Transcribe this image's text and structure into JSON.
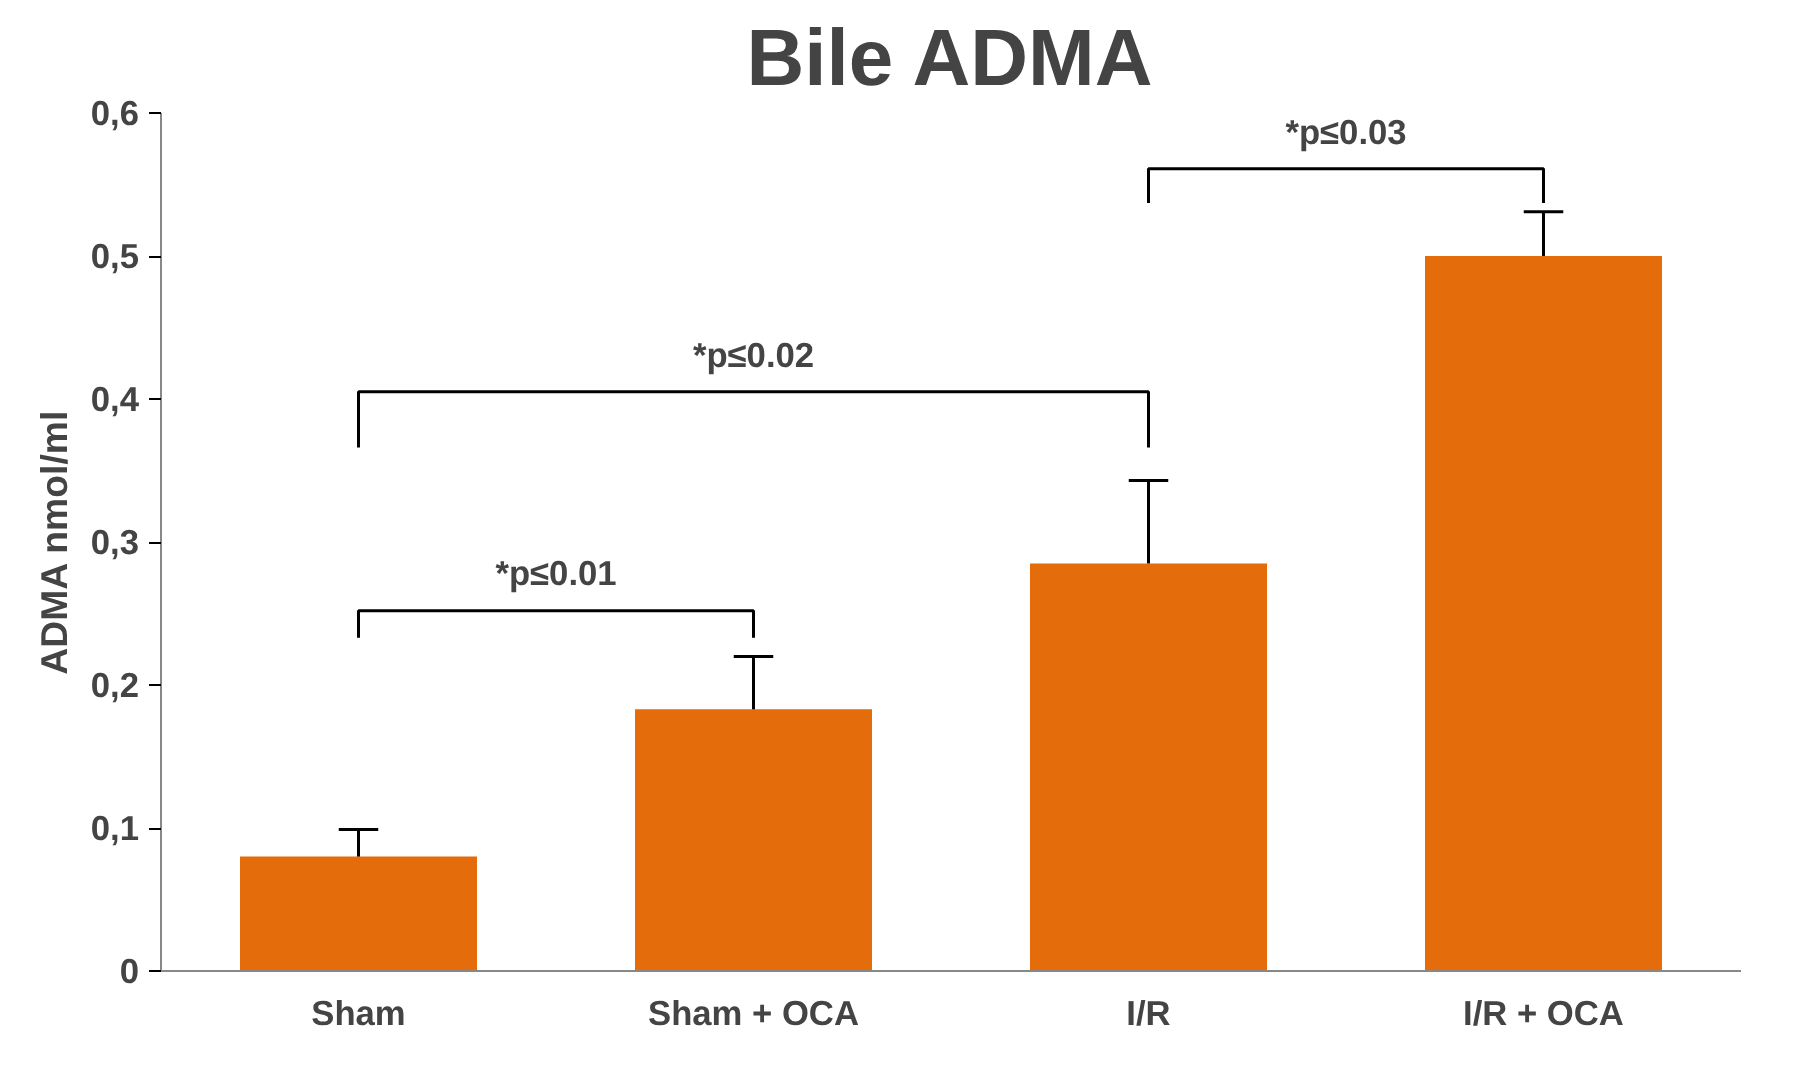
{
  "chart_data": {
    "type": "bar",
    "title": "Bile ADMA",
    "ylabel": "ADMA nmol/ml",
    "categories": [
      "Sham",
      "Sham + OCA",
      "I/R",
      "I/R + OCA"
    ],
    "values": [
      0.08,
      0.183,
      0.285,
      0.5
    ],
    "errors": [
      [
        0.08,
        0.099
      ],
      [
        0.183,
        0.22
      ],
      [
        0.285,
        0.343
      ],
      [
        0.5,
        0.531
      ]
    ],
    "color": "#e46c0a",
    "ylim": [
      0,
      0.6
    ],
    "yticks": [
      0,
      {
        "value": 0.1,
        "label": "0,1"
      },
      {
        "value": 0.2,
        "label": "0,2"
      },
      {
        "value": 0.3,
        "label": "0,3"
      },
      {
        "value": 0.4,
        "label": "0,4"
      },
      {
        "value": 0.5,
        "label": "0,5"
      },
      {
        "value": 0.6,
        "label": "0,6"
      }
    ],
    "annotations": [
      "*p≤0.01",
      "*p≤0.02",
      "*p≤0.03"
    ],
    "grid": false
  }
}
